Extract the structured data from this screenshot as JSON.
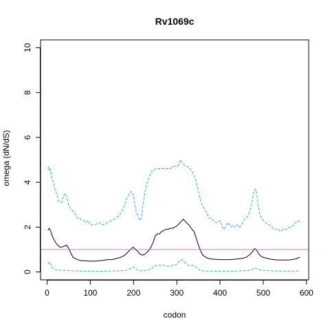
{
  "chart_data": {
    "type": "line",
    "title": "Rv1069c",
    "xlabel": "codon",
    "ylabel": "omega (dN/dS)",
    "xlim": [
      -15,
      605
    ],
    "ylim": [
      -0.35,
      10.35
    ],
    "xticks": [
      0,
      100,
      200,
      300,
      400,
      500,
      600
    ],
    "yticks": [
      0,
      2,
      4,
      6,
      8,
      10
    ],
    "grid": false,
    "reference_line": {
      "y": 1,
      "color": "#c77ccf"
    },
    "series": [
      {
        "style": "dashed",
        "color": "#3aa8e0",
        "x": [
          2,
          4,
          6,
          8,
          10,
          12,
          15,
          18,
          22,
          26,
          30,
          34,
          38,
          42,
          46,
          50,
          55,
          60,
          65,
          70,
          75,
          80,
          85,
          90,
          95,
          100,
          110,
          120,
          130,
          140,
          150,
          160,
          170,
          175,
          180,
          185,
          190,
          195,
          200,
          203,
          206,
          210,
          214,
          218,
          222,
          226,
          230,
          234,
          238,
          242,
          246,
          250,
          255,
          260,
          265,
          270,
          275,
          280,
          285,
          290,
          295,
          300,
          305,
          308,
          312,
          316,
          320,
          325,
          330,
          335,
          340,
          345,
          350,
          355,
          360,
          365,
          370,
          375,
          380,
          385,
          390,
          395,
          400,
          405,
          410,
          415,
          420,
          425,
          430,
          435,
          440,
          445,
          450,
          455,
          460,
          465,
          470,
          475,
          478,
          482,
          485,
          488,
          492,
          496,
          500,
          505,
          510,
          515,
          520,
          525,
          530,
          535,
          540,
          545,
          550,
          555,
          560,
          565,
          570,
          575,
          580,
          585
        ],
        "values": [
          4.6,
          4.7,
          4.5,
          4.6,
          4.3,
          4.1,
          4.0,
          3.7,
          3.5,
          3.2,
          3.1,
          3.1,
          3.4,
          3.5,
          3.3,
          3.0,
          2.8,
          2.7,
          2.6,
          2.4,
          2.4,
          2.3,
          2.3,
          2.2,
          2.3,
          2.1,
          2.1,
          2.2,
          2.1,
          2.2,
          2.3,
          2.4,
          2.6,
          2.8,
          3.0,
          3.3,
          3.5,
          3.6,
          3.4,
          3.0,
          2.7,
          2.5,
          2.3,
          2.4,
          3.0,
          3.5,
          3.9,
          4.1,
          4.3,
          4.5,
          4.5,
          4.6,
          4.6,
          4.6,
          4.6,
          4.6,
          4.6,
          4.6,
          4.6,
          4.7,
          4.7,
          4.7,
          4.8,
          5.0,
          4.9,
          4.8,
          4.7,
          4.7,
          4.6,
          4.5,
          4.3,
          4.0,
          3.6,
          3.2,
          2.9,
          2.8,
          2.6,
          2.4,
          2.4,
          2.3,
          2.2,
          2.2,
          2.3,
          2.0,
          1.9,
          2.1,
          2.2,
          2.0,
          2.1,
          2.0,
          2.1,
          2.0,
          2.1,
          2.3,
          2.4,
          2.5,
          2.8,
          3.2,
          3.6,
          3.7,
          3.5,
          3.0,
          2.6,
          2.4,
          2.3,
          2.2,
          2.1,
          2.1,
          2.0,
          1.9,
          1.9,
          1.9,
          1.8,
          1.9,
          1.9,
          1.9,
          2.0,
          2.0,
          2.1,
          2.2,
          2.3,
          2.2
        ]
      },
      {
        "style": "solid",
        "color": "#000000",
        "x": [
          2,
          5,
          8,
          12,
          16,
          20,
          25,
          30,
          35,
          40,
          45,
          50,
          55,
          60,
          70,
          80,
          90,
          100,
          110,
          120,
          130,
          140,
          150,
          160,
          170,
          175,
          180,
          185,
          190,
          195,
          200,
          205,
          210,
          215,
          220,
          225,
          230,
          235,
          240,
          245,
          250,
          255,
          260,
          265,
          270,
          275,
          280,
          285,
          290,
          295,
          300,
          305,
          310,
          315,
          320,
          325,
          330,
          335,
          340,
          345,
          350,
          355,
          360,
          370,
          380,
          390,
          400,
          410,
          420,
          430,
          440,
          450,
          460,
          465,
          470,
          475,
          480,
          485,
          490,
          495,
          500,
          510,
          520,
          530,
          540,
          550,
          560,
          570,
          580,
          585
        ],
        "values": [
          1.85,
          1.95,
          1.85,
          1.6,
          1.45,
          1.3,
          1.2,
          1.1,
          1.12,
          1.15,
          1.2,
          1.05,
          0.85,
          0.65,
          0.55,
          0.5,
          0.5,
          0.48,
          0.48,
          0.5,
          0.52,
          0.55,
          0.55,
          0.6,
          0.65,
          0.7,
          0.75,
          0.85,
          0.95,
          1.05,
          1.1,
          1.0,
          0.9,
          0.8,
          0.75,
          0.78,
          0.85,
          0.95,
          1.1,
          1.3,
          1.6,
          1.7,
          1.7,
          1.8,
          1.85,
          1.9,
          1.9,
          1.95,
          1.95,
          2.0,
          2.05,
          2.15,
          2.25,
          2.35,
          2.25,
          2.15,
          2.05,
          1.9,
          1.8,
          1.5,
          1.2,
          0.95,
          0.75,
          0.62,
          0.58,
          0.56,
          0.55,
          0.55,
          0.55,
          0.56,
          0.58,
          0.6,
          0.65,
          0.72,
          0.8,
          0.9,
          1.05,
          0.95,
          0.8,
          0.7,
          0.65,
          0.6,
          0.56,
          0.54,
          0.53,
          0.53,
          0.54,
          0.56,
          0.62,
          0.66
        ]
      },
      {
        "style": "dashed",
        "color": "#3aa8e0",
        "x": [
          2,
          5,
          8,
          12,
          16,
          20,
          25,
          30,
          40,
          50,
          60,
          80,
          100,
          120,
          140,
          160,
          180,
          190,
          195,
          200,
          205,
          210,
          220,
          230,
          240,
          245,
          250,
          260,
          270,
          280,
          290,
          300,
          305,
          310,
          315,
          320,
          325,
          330,
          340,
          350,
          360,
          380,
          400,
          420,
          440,
          460,
          470,
          475,
          480,
          485,
          490,
          500,
          520,
          540,
          560,
          580,
          585
        ],
        "values": [
          0.35,
          0.45,
          0.35,
          0.2,
          0.12,
          0.1,
          0.08,
          0.08,
          0.07,
          0.06,
          0.05,
          0.04,
          0.03,
          0.03,
          0.04,
          0.05,
          0.06,
          0.1,
          0.18,
          0.22,
          0.15,
          0.08,
          0.05,
          0.07,
          0.12,
          0.2,
          0.28,
          0.3,
          0.3,
          0.25,
          0.3,
          0.35,
          0.45,
          0.55,
          0.5,
          0.4,
          0.3,
          0.3,
          0.28,
          0.12,
          0.05,
          0.04,
          0.03,
          0.03,
          0.04,
          0.06,
          0.08,
          0.12,
          0.18,
          0.15,
          0.1,
          0.07,
          0.05,
          0.04,
          0.04,
          0.05,
          0.05
        ]
      }
    ]
  }
}
